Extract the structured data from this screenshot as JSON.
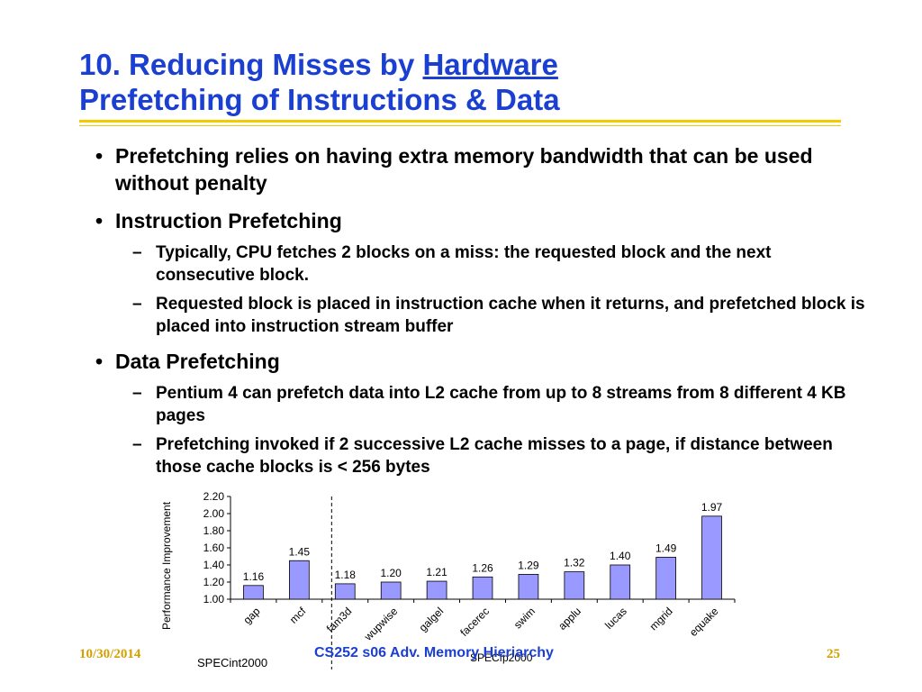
{
  "slide": {
    "title_prefix": "10. Reducing Misses by ",
    "title_underlined": "Hardware",
    "title_line2": "Prefetching of Instructions & Data",
    "bullets": [
      {
        "level": 1,
        "text": "Prefetching relies on having extra memory bandwidth that can be used without penalty"
      },
      {
        "level": 1,
        "text": "Instruction Prefetching"
      },
      {
        "level": 2,
        "text": "Typically, CPU fetches 2 blocks on a miss: the requested block and the next consecutive block."
      },
      {
        "level": 2,
        "text": "Requested block is placed in instruction cache when it returns, and prefetched block is placed into instruction stream buffer"
      },
      {
        "level": 1,
        "text": "Data Prefetching"
      },
      {
        "level": 2,
        "text": "Pentium 4 can prefetch data into L2 cache from up to 8 streams from 8 different 4 KB pages"
      },
      {
        "level": 2,
        "text": "Prefetching invoked if 2 successive L2 cache misses to a page, if distance between those cache blocks is < 256 bytes"
      }
    ],
    "bullet_l1": "•",
    "bullet_l2": "–"
  },
  "chart_data": {
    "type": "bar",
    "categories": [
      "gap",
      "mcf",
      "fam3d",
      "wupwise",
      "galgel",
      "facerec",
      "swim",
      "applu",
      "lucas",
      "mgrid",
      "equake"
    ],
    "values": [
      1.16,
      1.45,
      1.18,
      1.2,
      1.21,
      1.26,
      1.29,
      1.32,
      1.4,
      1.49,
      1.97
    ],
    "value_labels": [
      "1.16",
      "1.45",
      "1.18",
      "1.20",
      "1.21",
      "1.26",
      "1.29",
      "1.32",
      "1.40",
      "1.49",
      "1.97"
    ],
    "ylabel": "Performance Improvement",
    "ylim": [
      1.0,
      2.2
    ],
    "yticks": [
      "1.00",
      "1.20",
      "1.40",
      "1.60",
      "1.80",
      "2.00",
      "2.20"
    ],
    "ytick_values": [
      1.0,
      1.2,
      1.4,
      1.6,
      1.8,
      2.0,
      2.2
    ],
    "group_labels": [
      "SPECint2000",
      "SPECfp2000"
    ],
    "bar_color": "#9999ff",
    "divider_after_category": 2,
    "grid": false
  },
  "footer": {
    "date": "10/30/2014",
    "title": "CS252 s06 Adv. Memory Hieriarchy",
    "page": "25"
  },
  "colors": {
    "title": "#1a3fd1",
    "rule": "#f2cc00",
    "footer_accent": "#d4a000"
  }
}
